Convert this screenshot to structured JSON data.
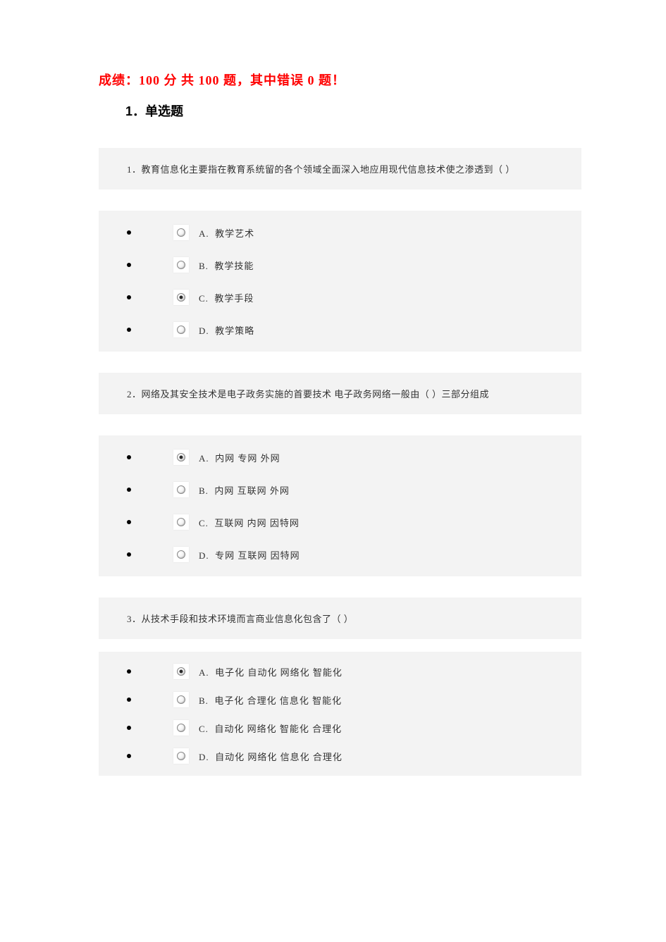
{
  "header": {
    "score_text": "成绩：100 分 共 100 题，其中错误 0 题！"
  },
  "section": {
    "title": "1．单选题"
  },
  "questions": [
    {
      "number": "1．",
      "text": "教育信息化主要指在教育系统留的各个领域全面深入地应用现代信息技术使之渗透到（ ）",
      "selected_index": 2,
      "options": [
        {
          "letter": "A.",
          "label": "教学艺术"
        },
        {
          "letter": "B.",
          "label": "教学技能"
        },
        {
          "letter": "C.",
          "label": "教学手段"
        },
        {
          "letter": "D.",
          "label": "教学策略"
        }
      ]
    },
    {
      "number": "2．",
      "text": "网络及其安全技术是电子政务实施的首要技术 电子政务网络一般由（ ）三部分组成",
      "selected_index": 0,
      "options": [
        {
          "letter": "A.",
          "label": "内网 专网 外网"
        },
        {
          "letter": "B.",
          "label": "内网 互联网 外网"
        },
        {
          "letter": "C.",
          "label": "互联网 内网 因特网"
        },
        {
          "letter": "D.",
          "label": "专网 互联网 因特网"
        }
      ]
    },
    {
      "number": "3．",
      "text": "从技术手段和技术环境而言商业信息化包含了（ ）",
      "selected_index": 0,
      "options": [
        {
          "letter": "A.",
          "label": "电子化 自动化 网络化 智能化"
        },
        {
          "letter": "B.",
          "label": "电子化 合理化 信息化 智能化"
        },
        {
          "letter": "C.",
          "label": "自动化 网络化 智能化 合理化"
        },
        {
          "letter": "D.",
          "label": "自动化 网络化 信息化 合理化"
        }
      ]
    }
  ],
  "colors": {
    "score_color": "#ff0000",
    "text_color": "#333333",
    "question_bg": "#f3f3f3",
    "body_bg": "#ffffff"
  }
}
